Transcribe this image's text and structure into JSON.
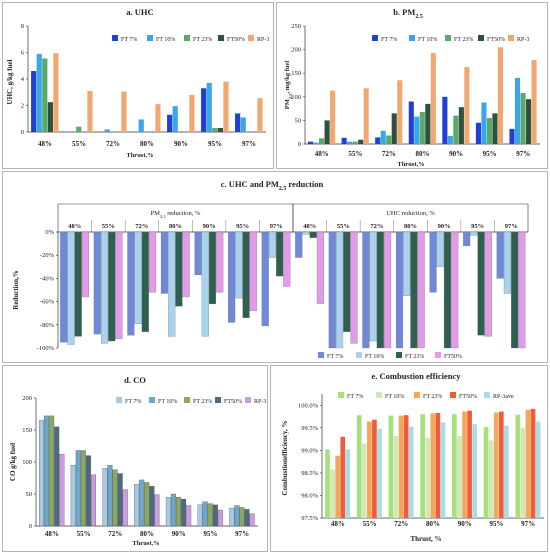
{
  "chart_data": [
    {
      "id": "uhc",
      "type": "bar",
      "title": "a. UHC",
      "xlabel": "Thrust,%",
      "ylabel": "UHC, g/kg fuel",
      "ylim": [
        0,
        8
      ],
      "yticks": [
        "0",
        "2",
        "4",
        "6",
        "8"
      ],
      "categories": [
        "48%",
        "55%",
        "72%",
        "80%",
        "90%",
        "95%",
        "97%"
      ],
      "legend": "top-right",
      "grid": false,
      "series": [
        {
          "name": "FT 7%",
          "color": "#1f3fd6",
          "values": [
            4.6,
            0,
            0,
            0,
            1.3,
            3.3,
            1.4
          ]
        },
        {
          "name": "FT 10%",
          "color": "#3aa6ea",
          "values": [
            5.9,
            0,
            0.2,
            0.95,
            1.95,
            3.7,
            1.1
          ]
        },
        {
          "name": "FT 23%",
          "color": "#5aa86a",
          "values": [
            5.55,
            0.4,
            0,
            0,
            0,
            0.3,
            0
          ]
        },
        {
          "name": "FT50%",
          "color": "#2f4f3f",
          "values": [
            2.25,
            0,
            0,
            0,
            0,
            0.3,
            0
          ]
        },
        {
          "name": "RP-3",
          "color": "#f0a870",
          "values": [
            5.95,
            3.1,
            3.05,
            2.1,
            2.8,
            3.8,
            2.55
          ]
        }
      ]
    },
    {
      "id": "pm",
      "type": "bar",
      "title": "b. PM",
      "title_sub": "2.5",
      "xlabel": "Thrust,%",
      "ylabel": "PM",
      "ylabel_sub": "2.5",
      "ylabel_tail": ", mg/kg fuel",
      "ylim": [
        0,
        250
      ],
      "yticks": [
        "0",
        "50",
        "100",
        "150",
        "200",
        "250"
      ],
      "categories": [
        "48%",
        "55%",
        "72%",
        "80%",
        "90%",
        "95%",
        "97%"
      ],
      "legend": "top-right",
      "grid": false,
      "series": [
        {
          "name": "FT 7%",
          "color": "#1f3fd6",
          "values": [
            5,
            13,
            14,
            90,
            100,
            45,
            32
          ]
        },
        {
          "name": "FT 10%",
          "color": "#3aa6ea",
          "values": [
            3,
            5,
            28,
            58,
            17,
            88,
            140
          ]
        },
        {
          "name": "FT 23%",
          "color": "#5aa86a",
          "values": [
            12,
            5,
            18,
            68,
            60,
            55,
            108
          ]
        },
        {
          "name": "FT50%",
          "color": "#2f4f3f",
          "values": [
            50,
            9,
            65,
            85,
            78,
            65,
            95
          ]
        },
        {
          "name": "RP-3",
          "color": "#f0a870",
          "values": [
            113,
            118,
            135,
            193,
            163,
            205,
            178
          ]
        }
      ]
    },
    {
      "id": "reduction",
      "type": "bar",
      "title": "c. UHC and PM",
      "title_sub": "2.5",
      "title_tail": " reduction",
      "xlabel": "",
      "ylabel": "Reduction,%",
      "ylim": [
        -100,
        0
      ],
      "yticks": [
        "0%",
        "-20%",
        "-40%",
        "-60%",
        "-80%",
        "-100%"
      ],
      "group_labels": [
        {
          "text": "PM",
          "sub": "2.5",
          "tail": " reduction, %"
        },
        {
          "text": "UHC  reduction, %",
          "sub": "",
          "tail": ""
        }
      ],
      "categories": [
        "48%",
        "55%",
        "72%",
        "80%",
        "90%",
        "95%",
        "97%",
        "48%",
        "55%",
        "72%",
        "80%",
        "90%",
        "95%",
        "97%"
      ],
      "legend": "bottom-right",
      "grid": false,
      "series": [
        {
          "name": "FT 7%",
          "color": "#6f89d8",
          "values": [
            -95,
            -88,
            -89,
            -53,
            -37,
            -78,
            -81,
            -22,
            -100,
            -100,
            -100,
            -52,
            -12,
            -40
          ]
        },
        {
          "name": "FT 10%",
          "color": "#a8d2ee",
          "values": [
            -97,
            -96,
            -79,
            -90,
            -90,
            -57,
            -22,
            -2,
            -100,
            -94,
            -55,
            -30,
            -3,
            -53
          ]
        },
        {
          "name": "FT 23%",
          "color": "#2f5f4f",
          "values": [
            -90,
            -94,
            -86,
            -64,
            -62,
            -74,
            -38,
            -5,
            -86,
            -100,
            -100,
            -100,
            -89,
            -100
          ]
        },
        {
          "name": "FT50%",
          "color": "#e39ae8",
          "values": [
            -56,
            -92,
            -52,
            -56,
            -52,
            -68,
            -47,
            -62,
            -96,
            -100,
            -100,
            -100,
            -90,
            -100
          ]
        }
      ]
    },
    {
      "id": "co",
      "type": "bar",
      "title": "d. CO",
      "xlabel": "Thrust,%",
      "ylabel": "CO  g/kg fuel",
      "ylim": [
        0,
        200
      ],
      "yticks": [
        "0",
        "50",
        "100",
        "150",
        "200"
      ],
      "categories": [
        "48%",
        "55%",
        "72%",
        "80%",
        "90%",
        "95%",
        "97%"
      ],
      "legend": "top-right",
      "grid": false,
      "series": [
        {
          "name": "FT 7%",
          "color": "#a8c8e8",
          "values": [
            165,
            95,
            90,
            65,
            45,
            33,
            28
          ]
        },
        {
          "name": "FT 10%",
          "color": "#6ea8c8",
          "values": [
            172,
            118,
            95,
            72,
            50,
            38,
            32
          ]
        },
        {
          "name": "FT 23%",
          "color": "#8aa860",
          "values": [
            172,
            118,
            88,
            68,
            45,
            35,
            29
          ]
        },
        {
          "name": "FT50%",
          "color": "#4e6a80",
          "values": [
            155,
            110,
            82,
            62,
            42,
            33,
            26
          ]
        },
        {
          "name": "RP-3",
          "color": "#c89ee0",
          "values": [
            112,
            80,
            57,
            49,
            32,
            25,
            19
          ]
        }
      ]
    },
    {
      "id": "eff",
      "type": "bar",
      "title": "e. Combustion efficiency",
      "xlabel": "Thrust, %",
      "ylabel": "Combustionefficiency,  %",
      "ylim": [
        97.5,
        100.25
      ],
      "ybase": 97.5,
      "yticks": [
        "97.5%",
        "98.0%",
        "98.5%",
        "99.0%",
        "99.5%",
        "100.0%"
      ],
      "categories": [
        "48%",
        "55%",
        "72%",
        "80%",
        "90%",
        "95%",
        "97%"
      ],
      "legend": "top",
      "grid": false,
      "series": [
        {
          "name": "FT  7%",
          "color": "#a7e07a",
          "values": [
            99.02,
            99.78,
            99.77,
            99.8,
            99.8,
            99.52,
            99.79
          ]
        },
        {
          "name": "FT 10%",
          "color": "#cfe9b6",
          "values": [
            98.58,
            99.15,
            99.32,
            99.28,
            99.32,
            99.22,
            99.5
          ]
        },
        {
          "name": "FT 23%",
          "color": "#f5a65a",
          "values": [
            98.88,
            99.64,
            99.77,
            99.82,
            99.86,
            99.84,
            99.9
          ]
        },
        {
          "name": "FT50%",
          "color": "#ee5c3a",
          "values": [
            99.3,
            99.68,
            99.78,
            99.83,
            99.88,
            99.86,
            99.92
          ]
        },
        {
          "name": "RP-3ave",
          "color": "#a9dbe8",
          "values": [
            99.02,
            99.48,
            99.53,
            99.62,
            99.58,
            99.55,
            99.64
          ]
        }
      ]
    }
  ]
}
